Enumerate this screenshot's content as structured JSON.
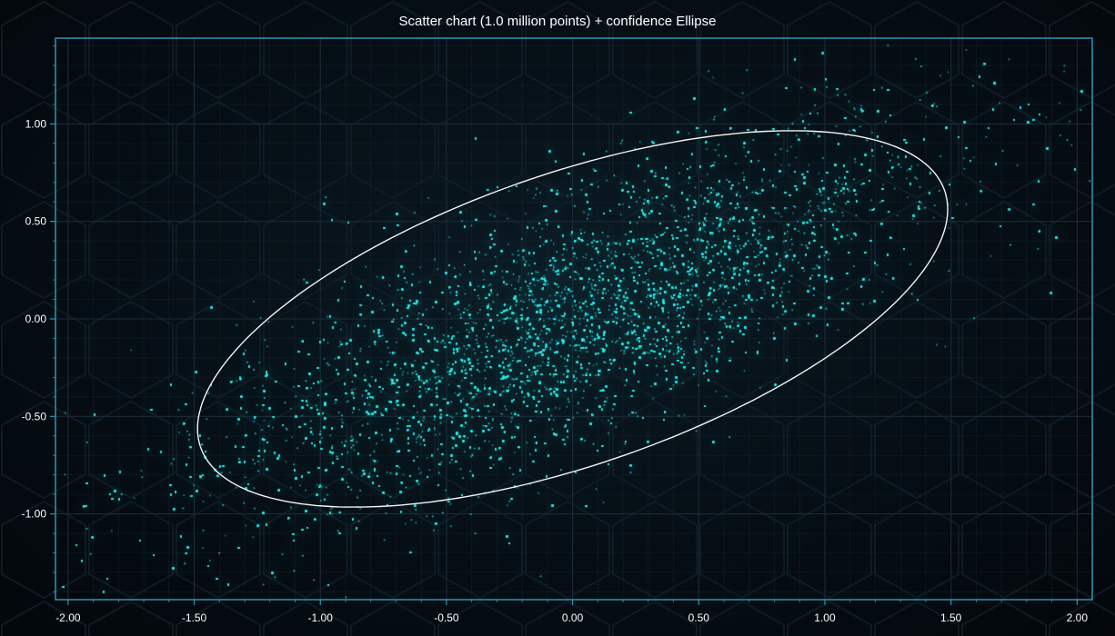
{
  "chart_data": {
    "type": "scatter",
    "title": "Scatter chart (1.0 million points) + confidence Ellipse",
    "xlabel": "",
    "ylabel": "",
    "xlim": [
      -2.05,
      2.06
    ],
    "ylim": [
      -1.44,
      1.44
    ],
    "x_ticks": [
      -2.0,
      -1.5,
      -1.0,
      -0.5,
      0.0,
      0.5,
      1.0,
      1.5,
      2.0
    ],
    "x_tick_labels": [
      "-2.00",
      "-1.50",
      "-1.00",
      "-0.50",
      "0.00",
      "0.50",
      "1.00",
      "1.50",
      "2.00"
    ],
    "y_ticks": [
      1.0,
      0.5,
      0.0,
      -0.5,
      -1.0
    ],
    "y_tick_labels": [
      "1.00",
      "0.50",
      "0.00",
      "-0.50",
      "-1.00"
    ],
    "grid": true,
    "series": [
      {
        "point_count": 1000000,
        "color": "#2ee8e4",
        "distribution": {
          "mean": [
            0.0,
            0.0
          ],
          "std": [
            0.66,
            0.46
          ],
          "correlation": 0.75
        }
      },
      {
        "kind": "confidence-ellipse",
        "color": "#f4f4f4",
        "center": [
          0.0,
          0.0
        ],
        "angle_deg": 26.3,
        "semi_axes": [
          1.62,
          0.72
        ]
      }
    ]
  },
  "colors": {
    "background": "#03070b",
    "frame": "#2a97b8",
    "grid": "#1b2a36",
    "points": "#2ee8e4",
    "ellipse": "#f4f4f4",
    "text": "#ffffff"
  }
}
